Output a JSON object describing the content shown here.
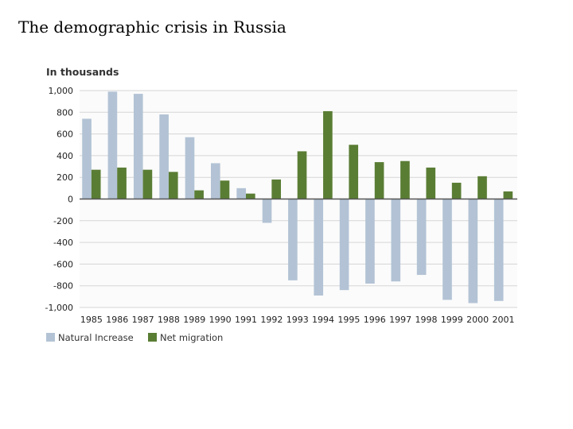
{
  "slide": {
    "title": "The demographic crisis in Russia"
  },
  "colors": {
    "natural_increase": "#b3c3d5",
    "net_migration": "#5a7d34",
    "gridline": "#d6d6d6",
    "zero_line": "#555555",
    "plot_bg": "#fbfbfb"
  },
  "chart_data": {
    "type": "bar",
    "title": "",
    "ylabel": "In thousands",
    "xlabel": "",
    "ylim": [
      -1000,
      1000
    ],
    "yticks": [
      1000,
      800,
      600,
      400,
      200,
      0,
      -200,
      -400,
      -600,
      -800,
      -1000
    ],
    "ytick_labels": [
      "1,000",
      "800",
      "600",
      "400",
      "200",
      "0",
      "-200",
      "-400",
      "-600",
      "-800",
      "-1,000"
    ],
    "grid": true,
    "legend_position": "bottom-left",
    "categories": [
      "1985",
      "1986",
      "1987",
      "1988",
      "1989",
      "1990",
      "1991",
      "1992",
      "1993",
      "1994",
      "1995",
      "1996",
      "1997",
      "1998",
      "1999",
      "2000",
      "2001"
    ],
    "series": [
      {
        "name": "Natural Increase",
        "color_key": "natural_increase",
        "values": [
          740,
          990,
          970,
          780,
          570,
          330,
          100,
          -220,
          -750,
          -890,
          -840,
          -780,
          -760,
          -700,
          -930,
          -960,
          -940
        ]
      },
      {
        "name": "Net migration",
        "color_key": "net_migration",
        "values": [
          270,
          290,
          270,
          250,
          80,
          170,
          50,
          180,
          440,
          810,
          500,
          340,
          350,
          290,
          150,
          210,
          70
        ]
      }
    ]
  }
}
